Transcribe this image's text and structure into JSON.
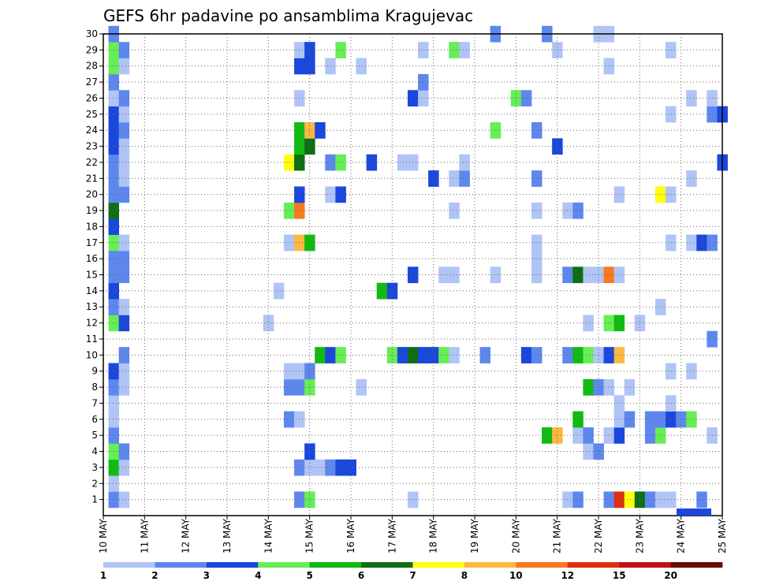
{
  "chart_data": {
    "type": "heatmap",
    "title": "GEFS 6hr padavine po ansamblima Kragujevac",
    "x_tick_labels": [
      "10 MAY",
      "11 MAY",
      "12 MAY",
      "13 MAY",
      "14 MAY",
      "15 MAY",
      "16 MAY",
      "17 MAY",
      "18 MAY",
      "19 MAY",
      "20 MAY",
      "21 MAY",
      "22 MAY",
      "23 MAY",
      "24 MAY",
      "25 MAY"
    ],
    "y_tick_labels": [
      "1",
      "2",
      "3",
      "4",
      "5",
      "6",
      "7",
      "8",
      "9",
      "10",
      "11",
      "12",
      "13",
      "14",
      "15",
      "16",
      "17",
      "18",
      "19",
      "20",
      "21",
      "22",
      "23",
      "24",
      "25",
      "26",
      "27",
      "28",
      "29",
      "30"
    ],
    "xlim": [
      0,
      60
    ],
    "ylim": [
      0,
      30
    ],
    "grid": true,
    "colorbar": {
      "tick_labels": [
        "1",
        "2",
        "3",
        "4",
        "5",
        "6",
        "7",
        "8",
        "10",
        "12",
        "15",
        "20"
      ],
      "colors": [
        "#b0c4f5",
        "#5e87ee",
        "#1a47dc",
        "#66ee55",
        "#11bb11",
        "#0e6e14",
        "#ffff10",
        "#fcb840",
        "#f8791e",
        "#dc2f10",
        "#bf1313",
        "#6e0808"
      ]
    },
    "cells": [
      {
        "step": 1,
        "member": 1,
        "color": "#5e87ee"
      },
      {
        "step": 2,
        "member": 1,
        "color": "#b0c4f5"
      },
      {
        "step": 19,
        "member": 1,
        "color": "#5e87ee"
      },
      {
        "step": 20,
        "member": 1,
        "color": "#66ee55"
      },
      {
        "step": 30,
        "member": 1,
        "color": "#b0c4f5"
      },
      {
        "step": 45,
        "member": 1,
        "color": "#b0c4f5"
      },
      {
        "step": 46,
        "member": 1,
        "color": "#5e87ee"
      },
      {
        "step": 49,
        "member": 1,
        "color": "#5e87ee"
      },
      {
        "step": 50,
        "member": 1,
        "color": "#dc2f10"
      },
      {
        "step": 51,
        "member": 1,
        "color": "#ffff10"
      },
      {
        "step": 52,
        "member": 1,
        "color": "#0e6e14"
      },
      {
        "step": 53,
        "member": 1,
        "color": "#5e87ee"
      },
      {
        "step": 54,
        "member": 1,
        "color": "#b0c4f5"
      },
      {
        "step": 55,
        "member": 1,
        "color": "#b0c4f5"
      },
      {
        "step": 58,
        "member": 1,
        "color": "#5e87ee"
      },
      {
        "step": 1,
        "member": 2,
        "color": "#b0c4f5"
      },
      {
        "step": 1,
        "member": 3,
        "color": "#11bb11"
      },
      {
        "step": 2,
        "member": 3,
        "color": "#b0c4f5"
      },
      {
        "step": 19,
        "member": 3,
        "color": "#5e87ee"
      },
      {
        "step": 20,
        "member": 3,
        "color": "#b0c4f5"
      },
      {
        "step": 21,
        "member": 3,
        "color": "#b0c4f5"
      },
      {
        "step": 22,
        "member": 3,
        "color": "#5e87ee"
      },
      {
        "step": 23,
        "member": 3,
        "color": "#1a47dc"
      },
      {
        "step": 24,
        "member": 3,
        "color": "#1a47dc"
      },
      {
        "step": 1,
        "member": 4,
        "color": "#66ee55"
      },
      {
        "step": 2,
        "member": 4,
        "color": "#5e87ee"
      },
      {
        "step": 20,
        "member": 4,
        "color": "#1a47dc"
      },
      {
        "step": 47,
        "member": 4,
        "color": "#b0c4f5"
      },
      {
        "step": 48,
        "member": 4,
        "color": "#5e87ee"
      },
      {
        "step": 1,
        "member": 5,
        "color": "#5e87ee"
      },
      {
        "step": 43,
        "member": 5,
        "color": "#11bb11"
      },
      {
        "step": 44,
        "member": 5,
        "color": "#fcb840"
      },
      {
        "step": 46,
        "member": 5,
        "color": "#b0c4f5"
      },
      {
        "step": 47,
        "member": 5,
        "color": "#5e87ee"
      },
      {
        "step": 49,
        "member": 5,
        "color": "#b0c4f5"
      },
      {
        "step": 50,
        "member": 5,
        "color": "#1a47dc"
      },
      {
        "step": 53,
        "member": 5,
        "color": "#5e87ee"
      },
      {
        "step": 54,
        "member": 5,
        "color": "#66ee55"
      },
      {
        "step": 59,
        "member": 5,
        "color": "#b0c4f5"
      },
      {
        "step": 1,
        "member": 6,
        "color": "#b0c4f5"
      },
      {
        "step": 18,
        "member": 6,
        "color": "#5e87ee"
      },
      {
        "step": 19,
        "member": 6,
        "color": "#b0c4f5"
      },
      {
        "step": 46,
        "member": 6,
        "color": "#11bb11"
      },
      {
        "step": 50,
        "member": 6,
        "color": "#b0c4f5"
      },
      {
        "step": 51,
        "member": 6,
        "color": "#5e87ee"
      },
      {
        "step": 53,
        "member": 6,
        "color": "#5e87ee"
      },
      {
        "step": 54,
        "member": 6,
        "color": "#5e87ee"
      },
      {
        "step": 55,
        "member": 6,
        "color": "#1a47dc"
      },
      {
        "step": 56,
        "member": 6,
        "color": "#5e87ee"
      },
      {
        "step": 57,
        "member": 6,
        "color": "#66ee55"
      },
      {
        "step": 1,
        "member": 7,
        "color": "#b0c4f5"
      },
      {
        "step": 50,
        "member": 7,
        "color": "#b0c4f5"
      },
      {
        "step": 55,
        "member": 7,
        "color": "#b0c4f5"
      },
      {
        "step": 1,
        "member": 8,
        "color": "#5e87ee"
      },
      {
        "step": 2,
        "member": 8,
        "color": "#b0c4f5"
      },
      {
        "step": 18,
        "member": 8,
        "color": "#5e87ee"
      },
      {
        "step": 19,
        "member": 8,
        "color": "#5e87ee"
      },
      {
        "step": 20,
        "member": 8,
        "color": "#66ee55"
      },
      {
        "step": 25,
        "member": 8,
        "color": "#b0c4f5"
      },
      {
        "step": 47,
        "member": 8,
        "color": "#11bb11"
      },
      {
        "step": 48,
        "member": 8,
        "color": "#5e87ee"
      },
      {
        "step": 49,
        "member": 8,
        "color": "#b0c4f5"
      },
      {
        "step": 51,
        "member": 8,
        "color": "#b0c4f5"
      },
      {
        "step": 1,
        "member": 9,
        "color": "#1a47dc"
      },
      {
        "step": 2,
        "member": 9,
        "color": "#b0c4f5"
      },
      {
        "step": 18,
        "member": 9,
        "color": "#b0c4f5"
      },
      {
        "step": 19,
        "member": 9,
        "color": "#b0c4f5"
      },
      {
        "step": 20,
        "member": 9,
        "color": "#5e87ee"
      },
      {
        "step": 55,
        "member": 9,
        "color": "#b0c4f5"
      },
      {
        "step": 57,
        "member": 9,
        "color": "#b0c4f5"
      },
      {
        "step": 2,
        "member": 10,
        "color": "#5e87ee"
      },
      {
        "step": 21,
        "member": 10,
        "color": "#11bb11"
      },
      {
        "step": 22,
        "member": 10,
        "color": "#1a47dc"
      },
      {
        "step": 23,
        "member": 10,
        "color": "#66ee55"
      },
      {
        "step": 28,
        "member": 10,
        "color": "#66ee55"
      },
      {
        "step": 29,
        "member": 10,
        "color": "#1a47dc"
      },
      {
        "step": 30,
        "member": 10,
        "color": "#0e6e14"
      },
      {
        "step": 31,
        "member": 10,
        "color": "#1a47dc"
      },
      {
        "step": 32,
        "member": 10,
        "color": "#1a47dc"
      },
      {
        "step": 33,
        "member": 10,
        "color": "#66ee55"
      },
      {
        "step": 34,
        "member": 10,
        "color": "#b0c4f5"
      },
      {
        "step": 37,
        "member": 10,
        "color": "#5e87ee"
      },
      {
        "step": 41,
        "member": 10,
        "color": "#1a47dc"
      },
      {
        "step": 42,
        "member": 10,
        "color": "#5e87ee"
      },
      {
        "step": 45,
        "member": 10,
        "color": "#5e87ee"
      },
      {
        "step": 46,
        "member": 10,
        "color": "#11bb11"
      },
      {
        "step": 47,
        "member": 10,
        "color": "#66ee55"
      },
      {
        "step": 48,
        "member": 10,
        "color": "#b0c4f5"
      },
      {
        "step": 49,
        "member": 10,
        "color": "#1a47dc"
      },
      {
        "step": 50,
        "member": 10,
        "color": "#fcb840"
      },
      {
        "step": 59,
        "member": 11,
        "color": "#5e87ee"
      },
      {
        "step": 1,
        "member": 12,
        "color": "#66ee55"
      },
      {
        "step": 2,
        "member": 12,
        "color": "#1a47dc"
      },
      {
        "step": 16,
        "member": 12,
        "color": "#b0c4f5"
      },
      {
        "step": 47,
        "member": 12,
        "color": "#b0c4f5"
      },
      {
        "step": 49,
        "member": 12,
        "color": "#66ee55"
      },
      {
        "step": 50,
        "member": 12,
        "color": "#11bb11"
      },
      {
        "step": 52,
        "member": 12,
        "color": "#b0c4f5"
      },
      {
        "step": 1,
        "member": 13,
        "color": "#5e87ee"
      },
      {
        "step": 2,
        "member": 13,
        "color": "#b0c4f5"
      },
      {
        "step": 54,
        "member": 13,
        "color": "#b0c4f5"
      },
      {
        "step": 1,
        "member": 14,
        "color": "#1a47dc"
      },
      {
        "step": 17,
        "member": 14,
        "color": "#b0c4f5"
      },
      {
        "step": 27,
        "member": 14,
        "color": "#11bb11"
      },
      {
        "step": 28,
        "member": 14,
        "color": "#1a47dc"
      },
      {
        "step": 1,
        "member": 15,
        "color": "#5e87ee"
      },
      {
        "step": 2,
        "member": 15,
        "color": "#5e87ee"
      },
      {
        "step": 30,
        "member": 15,
        "color": "#1a47dc"
      },
      {
        "step": 33,
        "member": 15,
        "color": "#b0c4f5"
      },
      {
        "step": 34,
        "member": 15,
        "color": "#b0c4f5"
      },
      {
        "step": 38,
        "member": 15,
        "color": "#b0c4f5"
      },
      {
        "step": 42,
        "member": 15,
        "color": "#b0c4f5"
      },
      {
        "step": 45,
        "member": 15,
        "color": "#5e87ee"
      },
      {
        "step": 46,
        "member": 15,
        "color": "#0e6e14"
      },
      {
        "step": 47,
        "member": 15,
        "color": "#b0c4f5"
      },
      {
        "step": 48,
        "member": 15,
        "color": "#b0c4f5"
      },
      {
        "step": 49,
        "member": 15,
        "color": "#f8791e"
      },
      {
        "step": 50,
        "member": 15,
        "color": "#b0c4f5"
      },
      {
        "step": 1,
        "member": 16,
        "color": "#5e87ee"
      },
      {
        "step": 2,
        "member": 16,
        "color": "#5e87ee"
      },
      {
        "step": 42,
        "member": 16,
        "color": "#b0c4f5"
      },
      {
        "step": 1,
        "member": 17,
        "color": "#66ee55"
      },
      {
        "step": 2,
        "member": 17,
        "color": "#b0c4f5"
      },
      {
        "step": 18,
        "member": 17,
        "color": "#b0c4f5"
      },
      {
        "step": 19,
        "member": 17,
        "color": "#fcb840"
      },
      {
        "step": 20,
        "member": 17,
        "color": "#11bb11"
      },
      {
        "step": 42,
        "member": 17,
        "color": "#b0c4f5"
      },
      {
        "step": 55,
        "member": 17,
        "color": "#b0c4f5"
      },
      {
        "step": 57,
        "member": 17,
        "color": "#b0c4f5"
      },
      {
        "step": 58,
        "member": 17,
        "color": "#1a47dc"
      },
      {
        "step": 59,
        "member": 17,
        "color": "#5e87ee"
      },
      {
        "step": 1,
        "member": 18,
        "color": "#1a47dc"
      },
      {
        "step": 1,
        "member": 19,
        "color": "#0e6e14"
      },
      {
        "step": 18,
        "member": 19,
        "color": "#66ee55"
      },
      {
        "step": 19,
        "member": 19,
        "color": "#f8791e"
      },
      {
        "step": 34,
        "member": 19,
        "color": "#b0c4f5"
      },
      {
        "step": 42,
        "member": 19,
        "color": "#b0c4f5"
      },
      {
        "step": 45,
        "member": 19,
        "color": "#b0c4f5"
      },
      {
        "step": 46,
        "member": 19,
        "color": "#5e87ee"
      },
      {
        "step": 1,
        "member": 20,
        "color": "#5e87ee"
      },
      {
        "step": 2,
        "member": 20,
        "color": "#5e87ee"
      },
      {
        "step": 19,
        "member": 20,
        "color": "#1a47dc"
      },
      {
        "step": 22,
        "member": 20,
        "color": "#b0c4f5"
      },
      {
        "step": 23,
        "member": 20,
        "color": "#1a47dc"
      },
      {
        "step": 50,
        "member": 20,
        "color": "#b0c4f5"
      },
      {
        "step": 54,
        "member": 20,
        "color": "#ffff10"
      },
      {
        "step": 55,
        "member": 20,
        "color": "#b0c4f5"
      },
      {
        "step": 1,
        "member": 21,
        "color": "#5e87ee"
      },
      {
        "step": 2,
        "member": 21,
        "color": "#b0c4f5"
      },
      {
        "step": 32,
        "member": 21,
        "color": "#1a47dc"
      },
      {
        "step": 34,
        "member": 21,
        "color": "#b0c4f5"
      },
      {
        "step": 35,
        "member": 21,
        "color": "#5e87ee"
      },
      {
        "step": 42,
        "member": 21,
        "color": "#5e87ee"
      },
      {
        "step": 57,
        "member": 21,
        "color": "#b0c4f5"
      },
      {
        "step": 1,
        "member": 22,
        "color": "#5e87ee"
      },
      {
        "step": 2,
        "member": 22,
        "color": "#b0c4f5"
      },
      {
        "step": 18,
        "member": 22,
        "color": "#ffff10"
      },
      {
        "step": 19,
        "member": 22,
        "color": "#0e6e14"
      },
      {
        "step": 22,
        "member": 22,
        "color": "#5e87ee"
      },
      {
        "step": 23,
        "member": 22,
        "color": "#66ee55"
      },
      {
        "step": 26,
        "member": 22,
        "color": "#1a47dc"
      },
      {
        "step": 29,
        "member": 22,
        "color": "#b0c4f5"
      },
      {
        "step": 30,
        "member": 22,
        "color": "#b0c4f5"
      },
      {
        "step": 35,
        "member": 22,
        "color": "#b0c4f5"
      },
      {
        "step": 60,
        "member": 22,
        "color": "#1a47dc"
      },
      {
        "step": 1,
        "member": 23,
        "color": "#1a47dc"
      },
      {
        "step": 2,
        "member": 23,
        "color": "#b0c4f5"
      },
      {
        "step": 19,
        "member": 23,
        "color": "#11bb11"
      },
      {
        "step": 20,
        "member": 23,
        "color": "#0e6e14"
      },
      {
        "step": 44,
        "member": 23,
        "color": "#1a47dc"
      },
      {
        "step": 1,
        "member": 24,
        "color": "#1a47dc"
      },
      {
        "step": 2,
        "member": 24,
        "color": "#5e87ee"
      },
      {
        "step": 19,
        "member": 24,
        "color": "#11bb11"
      },
      {
        "step": 20,
        "member": 24,
        "color": "#fcb840"
      },
      {
        "step": 21,
        "member": 24,
        "color": "#1a47dc"
      },
      {
        "step": 38,
        "member": 24,
        "color": "#66ee55"
      },
      {
        "step": 42,
        "member": 24,
        "color": "#5e87ee"
      },
      {
        "step": 1,
        "member": 25,
        "color": "#1a47dc"
      },
      {
        "step": 2,
        "member": 25,
        "color": "#b0c4f5"
      },
      {
        "step": 55,
        "member": 25,
        "color": "#b0c4f5"
      },
      {
        "step": 59,
        "member": 25,
        "color": "#5e87ee"
      },
      {
        "step": 60,
        "member": 25,
        "color": "#1a47dc"
      },
      {
        "step": 1,
        "member": 26,
        "color": "#b0c4f5"
      },
      {
        "step": 2,
        "member": 26,
        "color": "#5e87ee"
      },
      {
        "step": 19,
        "member": 26,
        "color": "#b0c4f5"
      },
      {
        "step": 30,
        "member": 26,
        "color": "#1a47dc"
      },
      {
        "step": 31,
        "member": 26,
        "color": "#b0c4f5"
      },
      {
        "step": 40,
        "member": 26,
        "color": "#66ee55"
      },
      {
        "step": 41,
        "member": 26,
        "color": "#5e87ee"
      },
      {
        "step": 57,
        "member": 26,
        "color": "#b0c4f5"
      },
      {
        "step": 59,
        "member": 26,
        "color": "#b0c4f5"
      },
      {
        "step": 1,
        "member": 27,
        "color": "#5e87ee"
      },
      {
        "step": 31,
        "member": 27,
        "color": "#5e87ee"
      },
      {
        "step": 1,
        "member": 28,
        "color": "#66ee55"
      },
      {
        "step": 2,
        "member": 28,
        "color": "#b0c4f5"
      },
      {
        "step": 19,
        "member": 28,
        "color": "#1a47dc"
      },
      {
        "step": 20,
        "member": 28,
        "color": "#1a47dc"
      },
      {
        "step": 22,
        "member": 28,
        "color": "#b0c4f5"
      },
      {
        "step": 25,
        "member": 28,
        "color": "#b0c4f5"
      },
      {
        "step": 49,
        "member": 28,
        "color": "#b0c4f5"
      },
      {
        "step": 1,
        "member": 29,
        "color": "#66ee55"
      },
      {
        "step": 2,
        "member": 29,
        "color": "#5e87ee"
      },
      {
        "step": 19,
        "member": 29,
        "color": "#b0c4f5"
      },
      {
        "step": 20,
        "member": 29,
        "color": "#1a47dc"
      },
      {
        "step": 23,
        "member": 29,
        "color": "#66ee55"
      },
      {
        "step": 31,
        "member": 29,
        "color": "#b0c4f5"
      },
      {
        "step": 34,
        "member": 29,
        "color": "#66ee55"
      },
      {
        "step": 35,
        "member": 29,
        "color": "#b0c4f5"
      },
      {
        "step": 44,
        "member": 29,
        "color": "#b0c4f5"
      },
      {
        "step": 55,
        "member": 29,
        "color": "#b0c4f5"
      },
      {
        "step": 1,
        "member": 30,
        "color": "#5e87ee"
      },
      {
        "step": 38,
        "member": 30,
        "color": "#5e87ee"
      },
      {
        "step": 43,
        "member": 30,
        "color": "#5e87ee"
      },
      {
        "step": 48,
        "member": 30,
        "color": "#b0c4f5"
      },
      {
        "step": 49,
        "member": 30,
        "color": "#b0c4f5"
      }
    ]
  }
}
